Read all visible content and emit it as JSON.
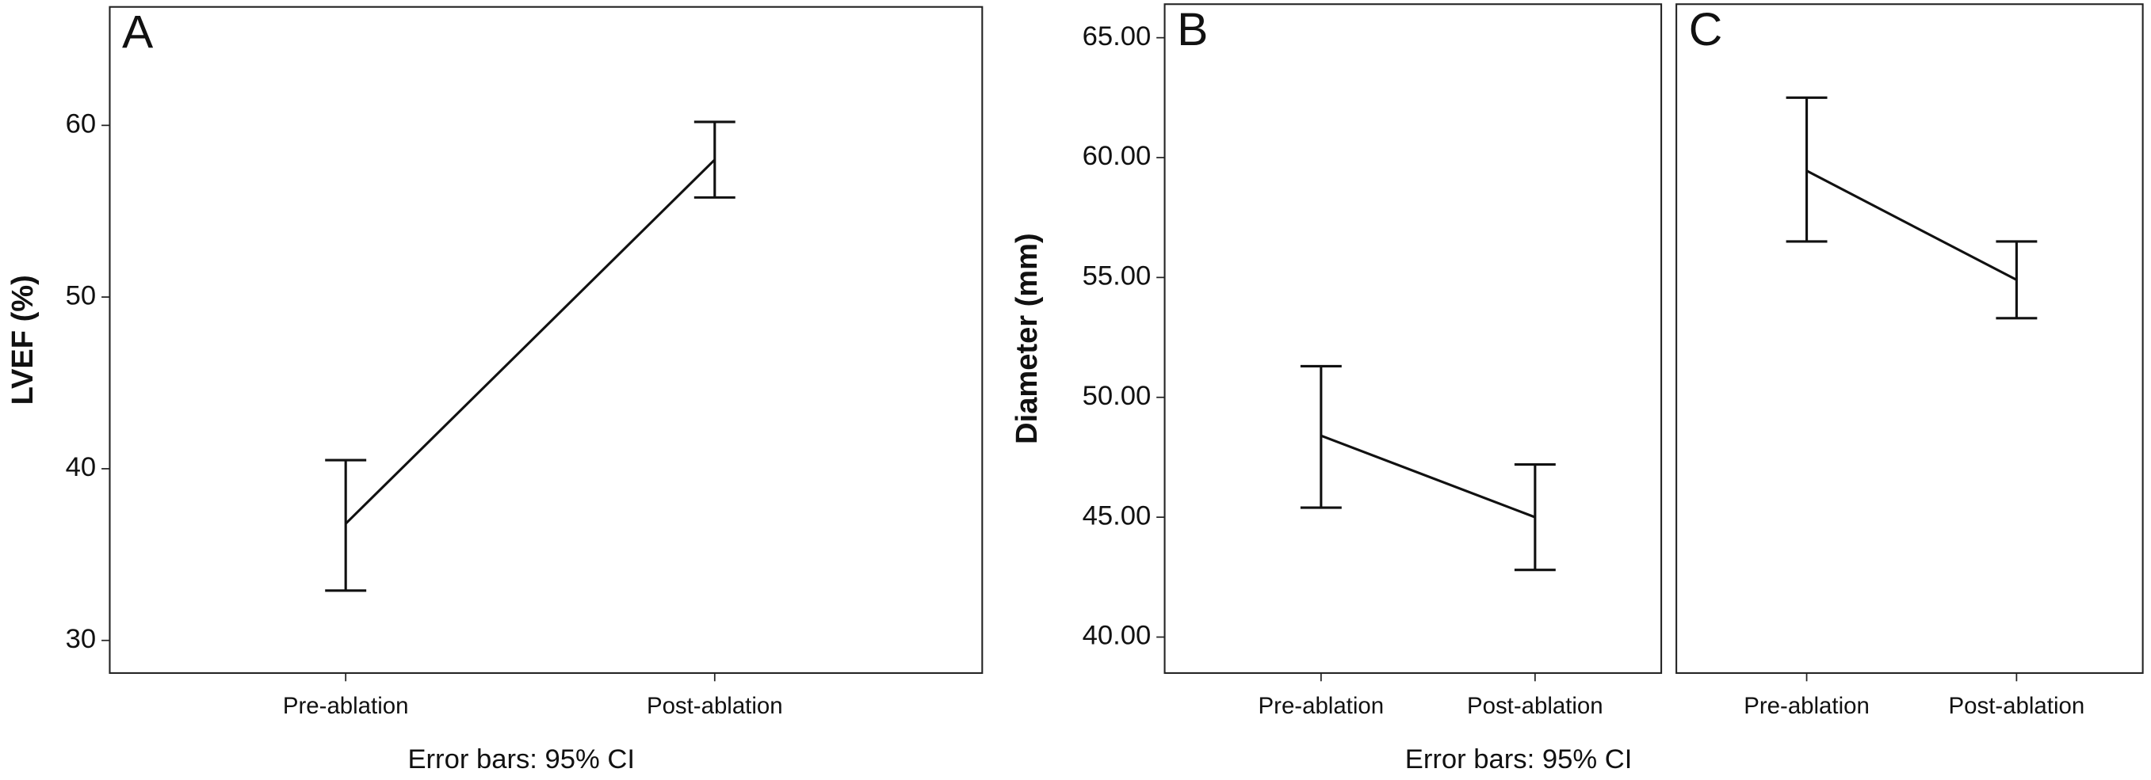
{
  "chart_data": [
    {
      "type": "line",
      "panel": "A",
      "y_label": "LVEF (%)",
      "note": "Error bars: 95% CI",
      "categories": [
        "Pre-ablation",
        "Post-ablation"
      ],
      "series": [
        {
          "color": "#111111",
          "values": [
            36.8,
            58.0
          ],
          "ci_low": [
            32.9,
            55.8
          ],
          "ci_high": [
            40.5,
            60.2
          ]
        }
      ],
      "ylim": [
        28.1,
        66.9
      ],
      "yticks": [
        30,
        40,
        50,
        60
      ]
    },
    {
      "type": "line",
      "panel": "B",
      "y_label": "Diameter (mm)",
      "note": "Error bars: 95% CI",
      "categories": [
        "Pre-ablation",
        "Post-ablation"
      ],
      "series": [
        {
          "color": "#111111",
          "values": [
            48.4,
            45.0
          ],
          "ci_low": [
            45.4,
            42.8
          ],
          "ci_high": [
            51.3,
            47.2
          ]
        }
      ],
      "ylim": [
        38.5,
        66.4
      ],
      "yticks": [
        {
          "value": 40,
          "label": "40.00"
        },
        {
          "value": 45,
          "label": "45.00"
        },
        {
          "value": 50,
          "label": "50.00"
        },
        {
          "value": 55,
          "label": "55.00"
        },
        {
          "value": 60,
          "label": "60.00"
        },
        {
          "value": 65,
          "label": "65.00"
        }
      ]
    },
    {
      "type": "line",
      "panel": "C",
      "categories": [
        "Pre-ablation",
        "Post-ablation"
      ],
      "series": [
        {
          "color": "#111111",
          "values": [
            59.45,
            54.9
          ],
          "ci_low": [
            56.5,
            53.3
          ],
          "ci_high": [
            62.5,
            56.5
          ]
        }
      ],
      "ylim": [
        38.5,
        66.4
      ]
    }
  ]
}
